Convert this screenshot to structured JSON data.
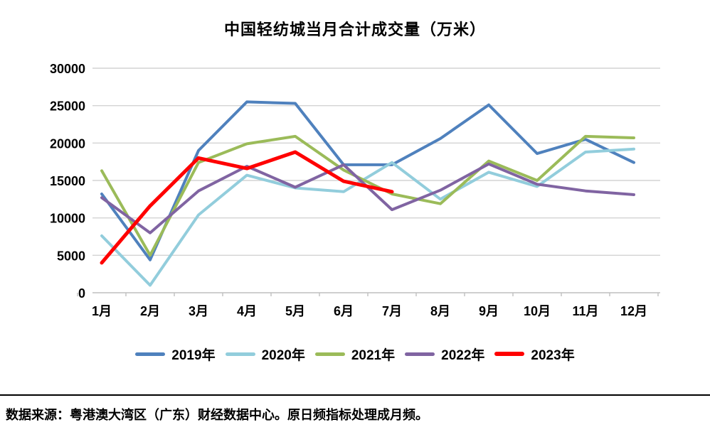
{
  "title": "中国轻纺城当月合计成交量（万米）",
  "footer": {
    "source": "数据来源：粤港澳大湾区（广东）财经数据中心。原日频指标处理成月频。"
  },
  "chart_data": {
    "type": "line",
    "title": "中国轻纺城当月合计成交量（万米）",
    "categories": [
      "1月",
      "2月",
      "3月",
      "4月",
      "5月",
      "6月",
      "7月",
      "8月",
      "9月",
      "10月",
      "11月",
      "12月"
    ],
    "series": [
      {
        "name": "2019年",
        "color": "#4F81BD",
        "line_width": 4,
        "values": [
          13200,
          4400,
          19000,
          25500,
          25300,
          17100,
          17100,
          20600,
          25100,
          18600,
          20500,
          17400
        ]
      },
      {
        "name": "2020年",
        "color": "#92CDDC",
        "line_width": 4,
        "values": [
          7600,
          1000,
          10400,
          15700,
          14000,
          13500,
          17400,
          12500,
          16100,
          14200,
          18800,
          19200
        ]
      },
      {
        "name": "2021年",
        "color": "#9BBB59",
        "line_width": 4,
        "values": [
          16300,
          5000,
          17400,
          19900,
          20900,
          16400,
          13200,
          11900,
          17600,
          15000,
          20900,
          20700
        ]
      },
      {
        "name": "2022年",
        "color": "#8064A2",
        "line_width": 4,
        "values": [
          12700,
          8000,
          13600,
          16900,
          14100,
          17100,
          11100,
          13700,
          17200,
          14500,
          13600,
          13100
        ]
      },
      {
        "name": "2023年",
        "color": "#FF0000",
        "line_width": 5,
        "values": [
          4000,
          11600,
          18000,
          16600,
          18800,
          14900,
          13500,
          null,
          null,
          null,
          null,
          null
        ]
      }
    ],
    "ylim": [
      0,
      30000
    ],
    "ytick_step": 5000,
    "xlabel": "",
    "ylabel": "",
    "grid": true,
    "legend_position": "bottom",
    "colors": {
      "gridline": "#D3D3D3",
      "axis_line": "#BFBFBF",
      "text": "#000000",
      "background": "#FFFFFF"
    }
  }
}
